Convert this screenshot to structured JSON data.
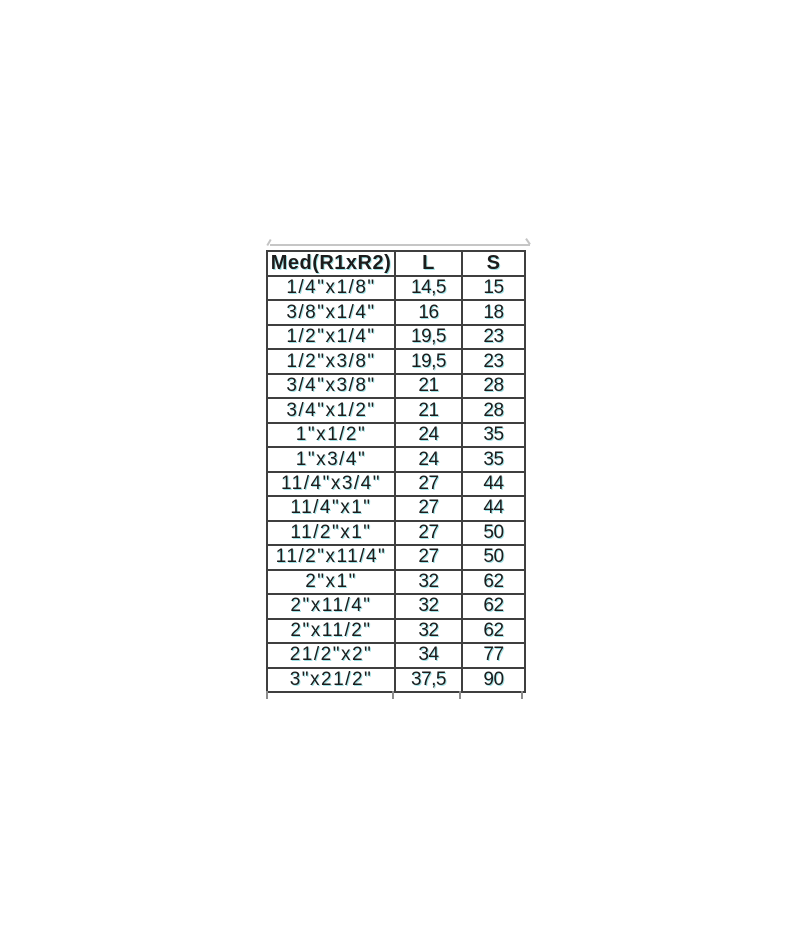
{
  "chart_data": {
    "type": "table",
    "columns": [
      "Med(R1xR2)",
      "L",
      "S"
    ],
    "rows": [
      [
        "1/4\"x1/8\"",
        "14,5",
        "15"
      ],
      [
        "3/8\"x1/4\"",
        "16",
        "18"
      ],
      [
        "1/2\"x1/4\"",
        "19,5",
        "23"
      ],
      [
        "1/2\"x3/8\"",
        "19,5",
        "23"
      ],
      [
        "3/4\"x3/8\"",
        "21",
        "28"
      ],
      [
        "3/4\"x1/2\"",
        "21",
        "28"
      ],
      [
        "1\"x1/2\"",
        "24",
        "35"
      ],
      [
        "1\"x3/4\"",
        "24",
        "35"
      ],
      [
        "11/4\"x3/4\"",
        "27",
        "44"
      ],
      [
        "11/4\"x1\"",
        "27",
        "44"
      ],
      [
        "11/2\"x1\"",
        "27",
        "50"
      ],
      [
        "11/2\"x11/4\"",
        "27",
        "50"
      ],
      [
        "2\"x1\"",
        "32",
        "62"
      ],
      [
        "2\"x11/4\"",
        "32",
        "62"
      ],
      [
        "2\"x11/2\"",
        "32",
        "62"
      ],
      [
        "21/2\"x2\"",
        "34",
        "77"
      ],
      [
        "3\"x21/2\"",
        "37,5",
        "90"
      ]
    ],
    "title": "",
    "layout": {
      "grid": true,
      "header_bold": true,
      "decimal_separator": "comma",
      "legend_position": "none"
    }
  },
  "colors": {
    "background": "#ffffff",
    "grid_border": "#3f3f3f",
    "text": "#1c1c1c",
    "scan_fringe": "#2dbec8",
    "faint_artifact_line": "#bcbcbc"
  }
}
